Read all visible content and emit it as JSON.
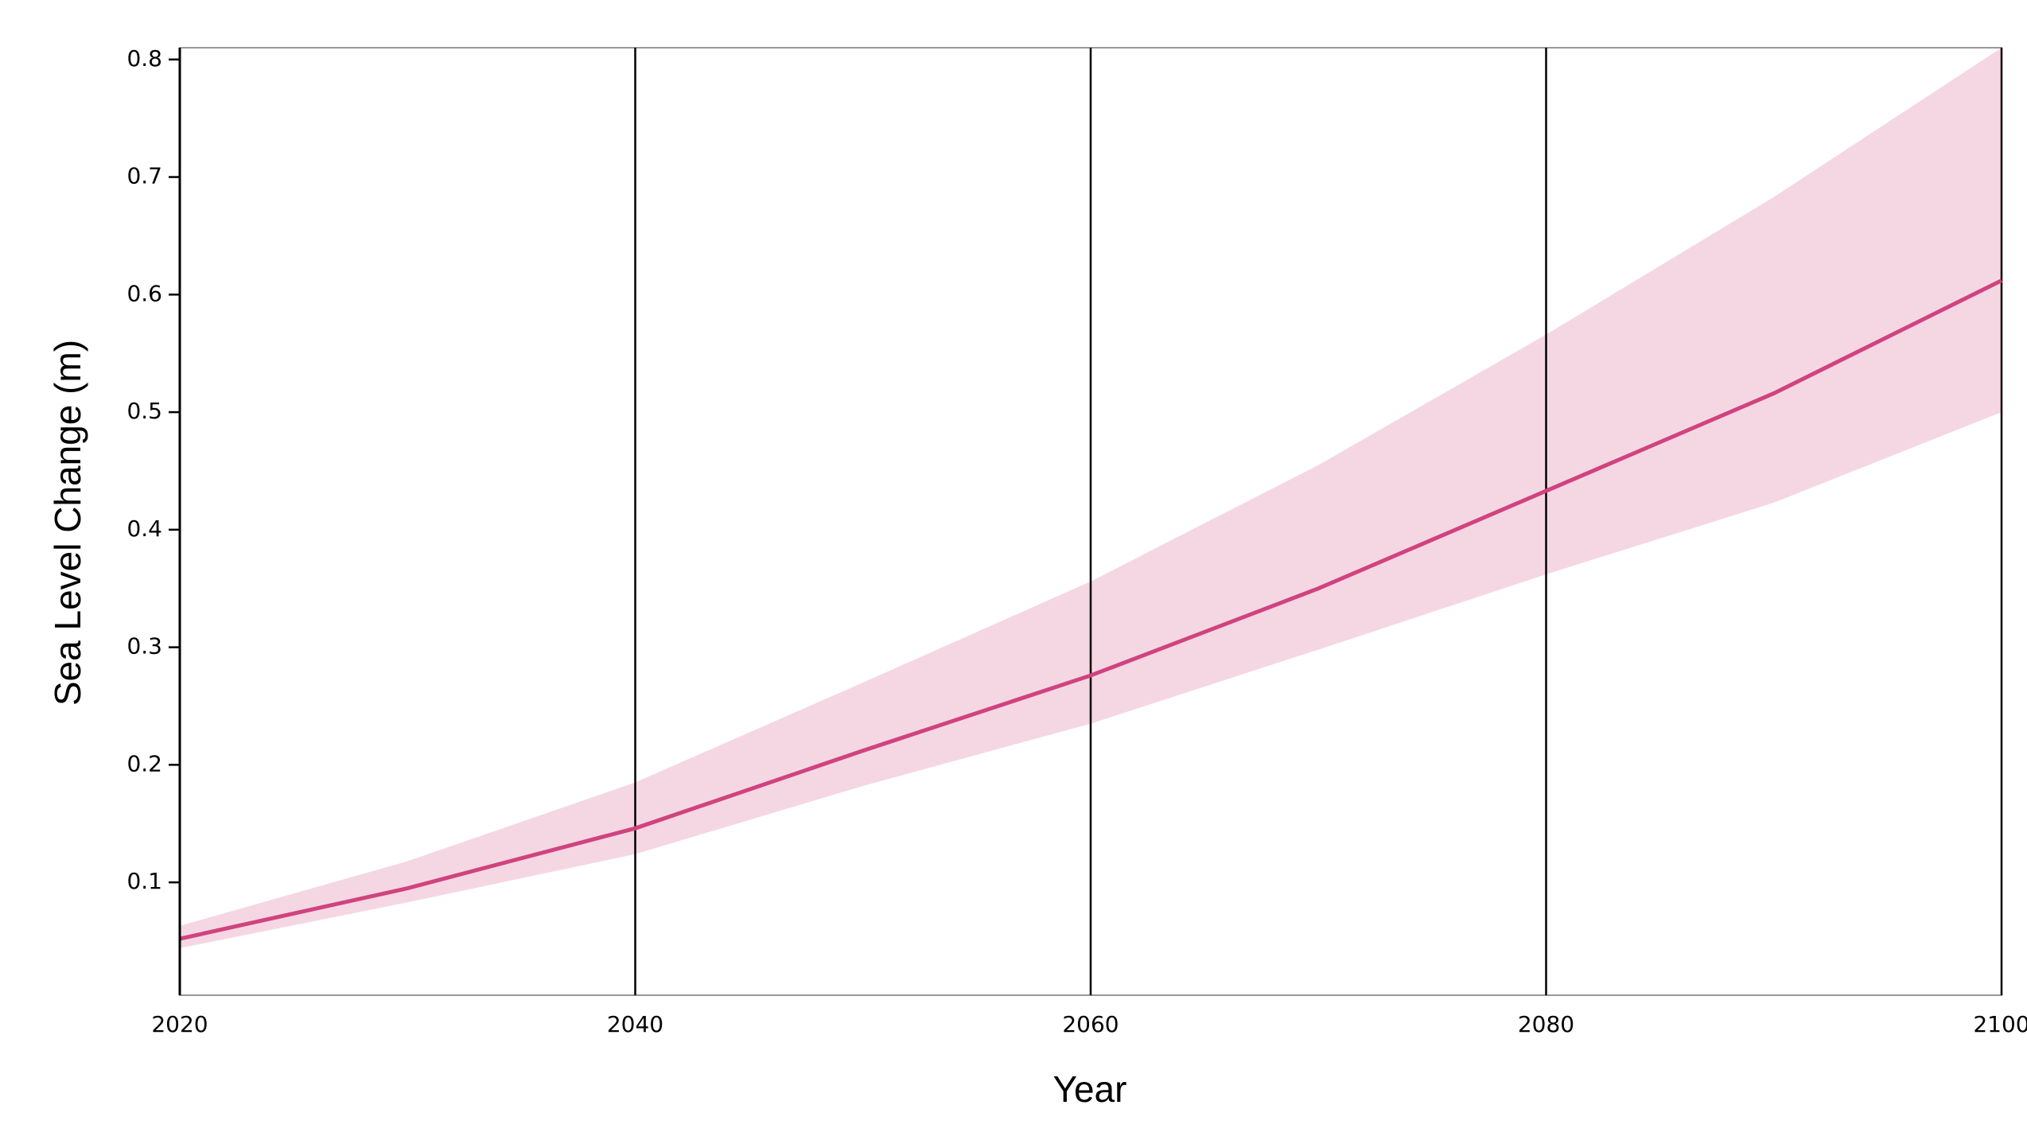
{
  "chart_data": {
    "type": "line",
    "x_label": "Year",
    "y_label": "Sea Level Change (m)",
    "x": [
      2020,
      2030,
      2040,
      2050,
      2060,
      2070,
      2080,
      2090,
      2100
    ],
    "series": [
      {
        "color": "#d0437f",
        "band_color": "#f5d7e3",
        "values": [
          0.052,
          0.095,
          0.146,
          0.212,
          0.276,
          0.35,
          0.433,
          0.516,
          0.612
        ],
        "upper": [
          0.063,
          0.118,
          0.185,
          0.27,
          0.356,
          0.455,
          0.566,
          0.683,
          0.81
        ],
        "lower": [
          0.044,
          0.083,
          0.124,
          0.182,
          0.235,
          0.298,
          0.362,
          0.423,
          0.5
        ]
      }
    ],
    "xlim": [
      2020,
      2100
    ],
    "xticks": [
      2020,
      2040,
      2060,
      2080,
      2100
    ],
    "ylim": [
      0.004,
      0.81
    ],
    "yticks": [
      0.1,
      0.2,
      0.3,
      0.4,
      0.5,
      0.6,
      0.7,
      0.8
    ],
    "grid": true
  }
}
